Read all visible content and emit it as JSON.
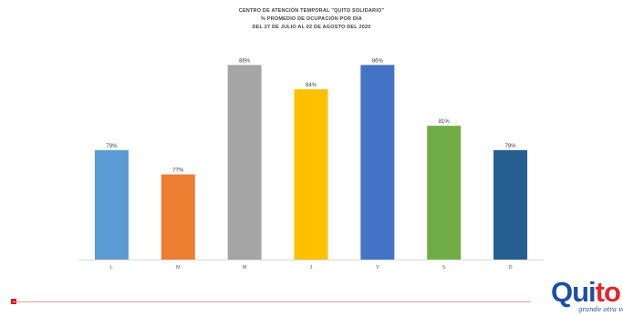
{
  "chart_data": {
    "type": "bar",
    "title_lines": [
      "CENTRO DE ATENCIÓN TEMPORAL \"QUITO SOLIDARIO\"",
      "% PROMEDIO DE OCUPACIÓN POR DÍA",
      "DEL 27 DE JULIO AL 02 DE AGOSTO DEL 2020"
    ],
    "categories": [
      "L",
      "M",
      "M",
      "J",
      "V",
      "S",
      "D"
    ],
    "values": [
      79,
      77,
      86,
      84,
      86,
      81,
      79
    ],
    "value_labels": [
      "79%",
      "77%",
      "86%",
      "84%",
      "86%",
      "81%",
      "79%"
    ],
    "colors": [
      "#5b9bd5",
      "#ed7d31",
      "#a5a5a5",
      "#ffc000",
      "#4472c4",
      "#70ad47",
      "#255e91"
    ],
    "ylim": [
      70,
      86.7
    ],
    "grid": false,
    "legend": "none"
  },
  "logo": {
    "word_part1": "Qui",
    "word_part2": "to",
    "tagline": "grande otra vez"
  }
}
